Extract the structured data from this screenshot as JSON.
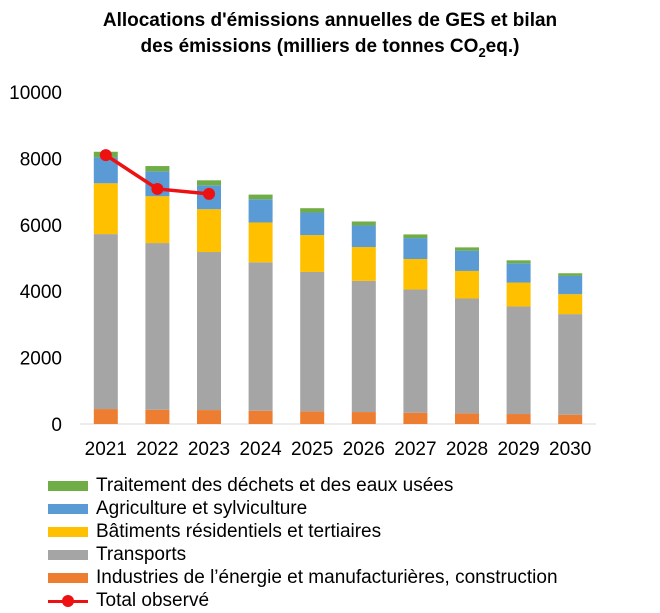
{
  "chart_data": {
    "type": "stacked-bar-with-line",
    "title": "Allocations d'émissions annuelles de GES et bilan",
    "title_line2_pre": "des émissions (milliers de tonnes CO",
    "title_sub": "2",
    "title_line2_post": "eq.)",
    "categories": [
      "2021",
      "2022",
      "2023",
      "2024",
      "2025",
      "2026",
      "2027",
      "2028",
      "2029",
      "2030"
    ],
    "ylim": [
      0,
      10000
    ],
    "yticks": [
      "0",
      "2000",
      "4000",
      "6000",
      "8000",
      "10000"
    ],
    "series": [
      {
        "name": "Industries de l’énergie et manufacturières, construction",
        "color": "#ed7d31",
        "values": [
          450,
          430,
          420,
          400,
          380,
          360,
          340,
          320,
          300,
          280
        ]
      },
      {
        "name": "Transports",
        "color": "#a5a5a5",
        "values": [
          5270,
          5020,
          4760,
          4470,
          4200,
          3950,
          3710,
          3460,
          3240,
          3030
        ]
      },
      {
        "name": "Bâtiments résidentiels et tertiaires",
        "color": "#ffc000",
        "values": [
          1530,
          1410,
          1290,
          1200,
          1110,
          1020,
          920,
          830,
          720,
          600
        ]
      },
      {
        "name": "Agriculture et sylviculture",
        "color": "#5b9bd5",
        "values": [
          780,
          750,
          720,
          700,
          680,
          650,
          630,
          610,
          580,
          550
        ]
      },
      {
        "name": "Traitement des déchets et des eaux usées",
        "color": "#70ad47",
        "values": [
          170,
          160,
          150,
          140,
          130,
          120,
          110,
          100,
          90,
          80
        ]
      }
    ],
    "line": {
      "name": "Total observé",
      "color": "#ee1111",
      "categories": [
        "2021",
        "2022",
        "2023"
      ],
      "values": [
        8100,
        7080,
        6930
      ]
    },
    "legend": [
      {
        "label": "Traitement des déchets et des eaux usées",
        "color": "#70ad47"
      },
      {
        "label": "Agriculture et sylviculture",
        "color": "#5b9bd5"
      },
      {
        "label": "Bâtiments résidentiels et tertiaires",
        "color": "#ffc000"
      },
      {
        "label": "Transports",
        "color": "#a5a5a5"
      },
      {
        "label": "Industries de l’énergie et manufacturières, construction",
        "color": "#ed7d31"
      },
      {
        "label": "Total observé",
        "color": "#ee1111",
        "kind": "line"
      }
    ]
  }
}
